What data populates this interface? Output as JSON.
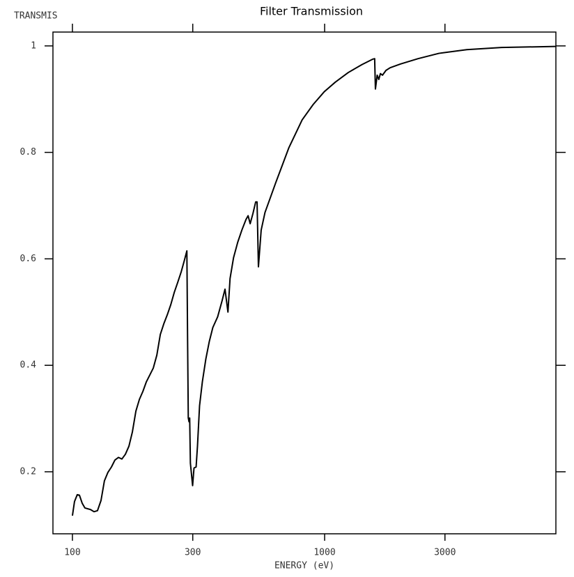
{
  "chart_data": {
    "type": "line",
    "title": "Filter Transmission",
    "y_label": "TRANSMIS",
    "x_label": "ENERGY (eV)",
    "x_scale": "log",
    "color": "#000000",
    "x": [
      100,
      101.9,
      104.5,
      106.6,
      109.3,
      112.1,
      118,
      121.8,
      125.7,
      129.8,
      133.9,
      138.3,
      142.8,
      147.4,
      152.2,
      157.1,
      162.2,
      167.5,
      172.9,
      178.5,
      184.3,
      190.3,
      196.4,
      202.8,
      209.3,
      216.1,
      223.1,
      230.3,
      237.8,
      245.5,
      253.4,
      261.6,
      270.1,
      277.1,
      284.3,
      286.2,
      288,
      289.9,
      291.7,
      293.6,
      299.6,
      303.4,
      309.3,
      313.2,
      319.2,
      327.5,
      338.1,
      349,
      360.3,
      376.5,
      392,
      402.7,
      413.7,
      421.7,
      435.3,
      452.2,
      469.7,
      487.9,
      497.2,
      506.7,
      519.6,
      532.9,
      539.6,
      546.4,
      560.3,
      580.1,
      611.4,
      639.9,
      679.6,
      721.8,
      766.7,
      814.3,
      901,
      997,
      1103,
      1241,
      1407,
      1550,
      1579,
      1590,
      1616,
      1640,
      1664,
      1696,
      1751,
      1819,
      2000,
      2346,
      2838,
      3660,
      5030,
      8260
    ],
    "values": [
      0.1175,
      0.144,
      0.157,
      0.156,
      0.141,
      0.132,
      0.129,
      0.125,
      0.127,
      0.146,
      0.183,
      0.199,
      0.209,
      0.222,
      0.227,
      0.224,
      0.233,
      0.248,
      0.275,
      0.314,
      0.336,
      0.351,
      0.369,
      0.382,
      0.395,
      0.419,
      0.458,
      0.478,
      0.495,
      0.514,
      0.537,
      0.556,
      0.576,
      0.595,
      0.615,
      0.445,
      0.301,
      0.294,
      0.301,
      0.216,
      0.174,
      0.207,
      0.209,
      0.248,
      0.324,
      0.369,
      0.412,
      0.445,
      0.471,
      0.491,
      0.521,
      0.543,
      0.5,
      0.563,
      0.602,
      0.631,
      0.654,
      0.674,
      0.681,
      0.666,
      0.685,
      0.707,
      0.707,
      0.585,
      0.654,
      0.687,
      0.717,
      0.743,
      0.776,
      0.809,
      0.835,
      0.861,
      0.89,
      0.914,
      0.932,
      0.95,
      0.965,
      0.975,
      0.976,
      0.919,
      0.945,
      0.937,
      0.948,
      0.945,
      0.954,
      0.959,
      0.966,
      0.976,
      0.986,
      0.993,
      0.997,
      0.999
    ],
    "xlim": [
      83.7,
      8260
    ],
    "xticks": [
      100,
      300,
      1000,
      3000
    ],
    "ylim": [
      0.0835,
      1.026
    ],
    "yticks": [
      0.2,
      0.4,
      0.6,
      0.8,
      1
    ]
  }
}
